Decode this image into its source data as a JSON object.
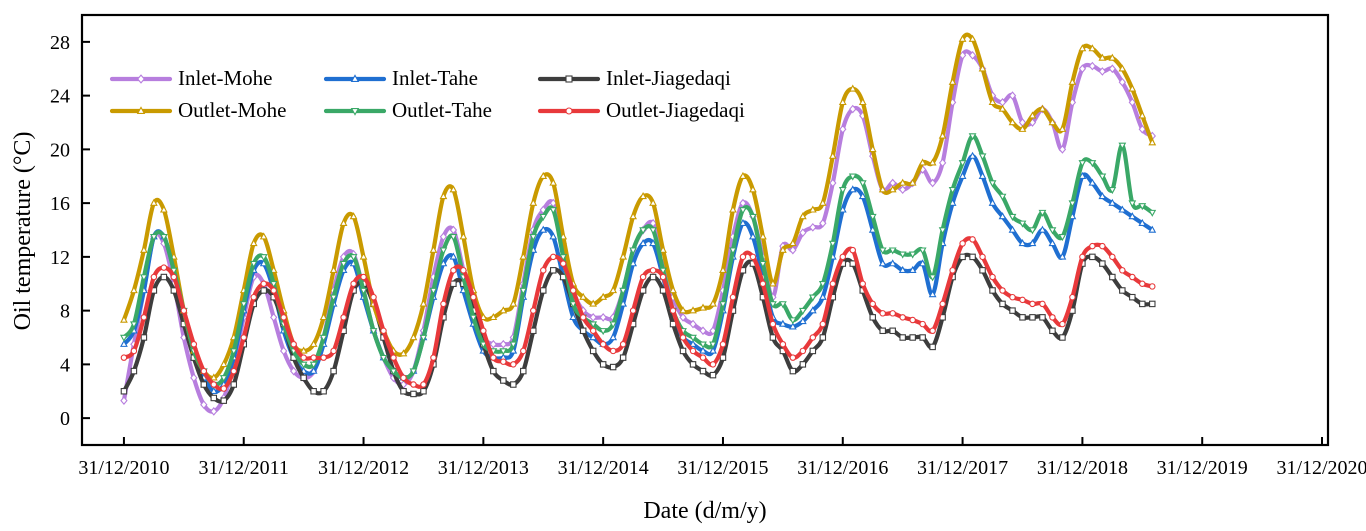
{
  "chart_data": {
    "type": "line",
    "xlabel": "Date (d/m/y)",
    "ylabel": "Oil temperature (°C)",
    "ylim": [
      -2,
      30
    ],
    "xlim": [
      -0.35,
      10.05
    ],
    "x_ticks": [
      0,
      1,
      2,
      3,
      4,
      5,
      6,
      7,
      8,
      9,
      10
    ],
    "x_tick_labels": [
      "31/12/2010",
      "31/12/2011",
      "31/12/2012",
      "31/12/2013",
      "31/12/2014",
      "31/12/2015",
      "31/12/2016",
      "31/12/2017",
      "31/12/2018",
      "31/12/2019",
      "31/12/2020"
    ],
    "y_ticks": [
      0,
      4,
      8,
      12,
      16,
      20,
      24,
      28
    ],
    "x_unit": "years since 31/12/2010 (monthly samples)",
    "legend_position": "top-left",
    "series": [
      {
        "name": "Inlet-Mohe",
        "color": "#b77ede",
        "marker": "diamond",
        "values": [
          1.3,
          5.5,
          9.5,
          13.5,
          13.0,
          10.0,
          6.0,
          3.0,
          1.0,
          0.5,
          1.5,
          4.0,
          7.5,
          10.5,
          10.0,
          7.5,
          5.0,
          3.5,
          3.0,
          3.5,
          6.0,
          9.5,
          12.0,
          12.2,
          9.5,
          6.5,
          4.5,
          3.0,
          2.5,
          3.5,
          6.5,
          10.5,
          13.5,
          14.0,
          11.0,
          8.0,
          6.0,
          5.5,
          5.5,
          6.0,
          10.0,
          14.0,
          15.5,
          16.0,
          13.0,
          9.5,
          8.0,
          7.5,
          7.5,
          7.5,
          9.5,
          12.5,
          14.0,
          14.5,
          12.0,
          9.0,
          7.5,
          7.0,
          6.5,
          6.5,
          9.5,
          13.5,
          16.0,
          15.0,
          12.0,
          9.0,
          12.8,
          12.5,
          13.8,
          14.2,
          14.5,
          17.5,
          21.5,
          23.0,
          22.5,
          19.5,
          17.0,
          17.5,
          17.0,
          17.5,
          18.5,
          17.5,
          19.0,
          23.5,
          27.0,
          27.0,
          26.0,
          24.0,
          23.5,
          24.0,
          22.0,
          22.0,
          23.0,
          22.0,
          20.0,
          23.5,
          26.0,
          26.2,
          25.8,
          26.0,
          25.0,
          23.5,
          21.5,
          21.0
        ]
      },
      {
        "name": "Inlet-Tahe",
        "color": "#1f6fd1",
        "marker": "triangle",
        "values": [
          5.5,
          6.5,
          9.5,
          13.5,
          13.5,
          11.0,
          7.5,
          4.5,
          3.0,
          2.0,
          2.5,
          4.5,
          8.0,
          11.0,
          11.5,
          9.5,
          6.5,
          4.5,
          3.5,
          3.5,
          5.5,
          8.5,
          11.0,
          11.5,
          9.0,
          6.5,
          4.5,
          3.5,
          3.0,
          3.5,
          6.0,
          9.0,
          11.5,
          12.0,
          9.5,
          7.0,
          5.0,
          4.5,
          4.5,
          5.0,
          9.0,
          12.5,
          14.0,
          13.5,
          10.5,
          7.5,
          6.5,
          6.0,
          5.5,
          6.0,
          8.5,
          11.5,
          13.0,
          13.0,
          10.5,
          7.5,
          6.0,
          5.5,
          5.0,
          5.0,
          8.0,
          12.0,
          14.5,
          13.5,
          10.5,
          7.5,
          7.0,
          6.8,
          7.2,
          8.0,
          9.0,
          12.0,
          15.5,
          17.0,
          16.5,
          14.0,
          11.5,
          11.5,
          11.0,
          11.0,
          11.5,
          9.2,
          13.0,
          16.0,
          18.0,
          19.5,
          18.0,
          16.0,
          15.0,
          14.0,
          13.0,
          13.0,
          14.0,
          13.0,
          12.0,
          15.0,
          18.0,
          17.5,
          16.5,
          16.0,
          15.5,
          15.0,
          14.5,
          14.0
        ]
      },
      {
        "name": "Inlet-Jiagedaqi",
        "color": "#3d3d3d",
        "marker": "square",
        "values": [
          2.0,
          3.5,
          6.0,
          9.5,
          10.5,
          9.5,
          7.0,
          4.5,
          2.5,
          1.5,
          1.3,
          2.5,
          5.5,
          8.5,
          9.5,
          9.0,
          7.0,
          4.5,
          3.0,
          2.0,
          2.0,
          3.5,
          6.5,
          9.5,
          10.0,
          8.5,
          6.0,
          3.5,
          2.0,
          1.8,
          2.0,
          4.0,
          7.5,
          10.0,
          10.0,
          8.0,
          5.5,
          3.5,
          2.8,
          2.5,
          3.5,
          6.5,
          9.5,
          11.0,
          10.5,
          8.5,
          6.5,
          5.0,
          4.0,
          3.8,
          4.5,
          7.0,
          9.5,
          10.5,
          9.5,
          7.0,
          5.0,
          4.0,
          3.5,
          3.2,
          4.5,
          8.0,
          11.0,
          11.5,
          9.0,
          6.0,
          5.0,
          3.5,
          4.0,
          5.0,
          6.0,
          9.0,
          11.5,
          11.5,
          9.5,
          7.5,
          6.5,
          6.5,
          6.0,
          6.0,
          6.0,
          5.3,
          7.5,
          10.5,
          12.0,
          12.0,
          11.0,
          9.5,
          8.5,
          8.0,
          7.5,
          7.5,
          7.5,
          6.5,
          6.0,
          8.0,
          11.5,
          12.0,
          11.5,
          10.5,
          9.5,
          9.0,
          8.5,
          8.5
        ]
      },
      {
        "name": "Outlet-Mohe",
        "color": "#c99a00",
        "marker": "triangle",
        "values": [
          7.3,
          9.5,
          12.5,
          16.0,
          15.5,
          12.0,
          8.0,
          5.0,
          3.5,
          3.0,
          4.0,
          6.0,
          9.5,
          13.0,
          13.5,
          11.0,
          8.0,
          5.5,
          5.0,
          5.5,
          7.5,
          11.0,
          14.5,
          15.0,
          12.0,
          8.5,
          6.5,
          5.0,
          4.8,
          6.0,
          8.5,
          12.5,
          16.5,
          17.0,
          13.5,
          9.5,
          7.5,
          7.5,
          8.0,
          8.5,
          12.0,
          16.0,
          18.0,
          17.5,
          13.5,
          10.0,
          9.0,
          8.5,
          9.0,
          9.5,
          12.0,
          15.0,
          16.5,
          16.0,
          12.5,
          9.5,
          8.0,
          8.0,
          8.2,
          8.5,
          11.0,
          15.5,
          18.0,
          17.0,
          13.5,
          10.0,
          12.5,
          13.0,
          15.0,
          15.5,
          16.0,
          19.5,
          23.5,
          24.5,
          23.5,
          20.0,
          17.0,
          17.0,
          17.5,
          17.5,
          19.0,
          19.0,
          21.0,
          25.0,
          28.2,
          28.2,
          26.0,
          23.5,
          23.0,
          22.0,
          21.5,
          22.5,
          23.0,
          22.0,
          21.5,
          25.0,
          27.5,
          27.5,
          26.8,
          26.8,
          26.0,
          24.5,
          22.5,
          20.5
        ]
      },
      {
        "name": "Outlet-Tahe",
        "color": "#3aa867",
        "marker": "triangle-down",
        "values": [
          6.0,
          7.0,
          10.5,
          13.5,
          13.5,
          11.0,
          8.0,
          5.0,
          3.5,
          2.5,
          3.0,
          5.0,
          8.5,
          11.5,
          12.0,
          10.0,
          7.0,
          5.0,
          4.0,
          4.0,
          6.0,
          9.0,
          11.5,
          12.0,
          9.5,
          6.5,
          4.5,
          3.5,
          3.0,
          3.5,
          6.0,
          9.5,
          12.5,
          13.5,
          10.5,
          7.5,
          5.5,
          5.0,
          5.0,
          5.5,
          9.5,
          13.5,
          15.0,
          15.5,
          12.0,
          8.5,
          7.5,
          7.0,
          6.5,
          7.0,
          9.5,
          12.5,
          14.0,
          14.0,
          11.0,
          8.0,
          6.5,
          6.0,
          5.5,
          5.5,
          8.5,
          12.5,
          15.5,
          15.0,
          11.5,
          8.5,
          8.5,
          7.3,
          8.0,
          9.0,
          10.0,
          13.0,
          17.0,
          18.0,
          17.5,
          15.0,
          12.5,
          12.5,
          12.2,
          12.2,
          12.5,
          10.5,
          14.0,
          17.0,
          19.0,
          21.0,
          19.5,
          17.5,
          16.5,
          15.0,
          14.5,
          14.0,
          15.3,
          14.0,
          13.5,
          16.0,
          19.0,
          19.0,
          18.0,
          17.0,
          20.3,
          16.0,
          15.8,
          15.3
        ]
      },
      {
        "name": "Outlet-Jiagedaqi",
        "color": "#e8393b",
        "marker": "circle",
        "values": [
          4.5,
          5.0,
          7.5,
          10.5,
          11.2,
          10.5,
          8.0,
          5.5,
          3.5,
          2.5,
          2.2,
          3.5,
          6.0,
          9.0,
          10.0,
          9.5,
          7.5,
          5.5,
          4.5,
          4.5,
          4.5,
          5.0,
          7.5,
          10.0,
          10.5,
          9.0,
          6.5,
          4.5,
          3.0,
          2.5,
          2.5,
          4.5,
          8.5,
          11.0,
          11.0,
          9.0,
          6.5,
          4.5,
          4.2,
          4.0,
          5.0,
          8.0,
          11.0,
          12.0,
          11.5,
          9.5,
          7.5,
          6.5,
          5.5,
          5.0,
          5.5,
          8.0,
          10.5,
          11.0,
          10.5,
          8.0,
          6.0,
          5.0,
          4.5,
          4.0,
          5.5,
          9.0,
          12.0,
          12.0,
          10.0,
          7.0,
          5.5,
          4.5,
          5.0,
          6.0,
          7.0,
          10.0,
          12.0,
          12.5,
          10.0,
          8.5,
          7.8,
          7.8,
          7.5,
          7.3,
          7.0,
          6.5,
          8.5,
          11.0,
          13.0,
          13.3,
          12.0,
          10.5,
          9.5,
          9.0,
          8.8,
          8.5,
          8.5,
          7.5,
          7.0,
          9.0,
          12.0,
          12.8,
          12.8,
          12.0,
          11.0,
          10.5,
          10.0,
          9.8
        ]
      }
    ]
  }
}
